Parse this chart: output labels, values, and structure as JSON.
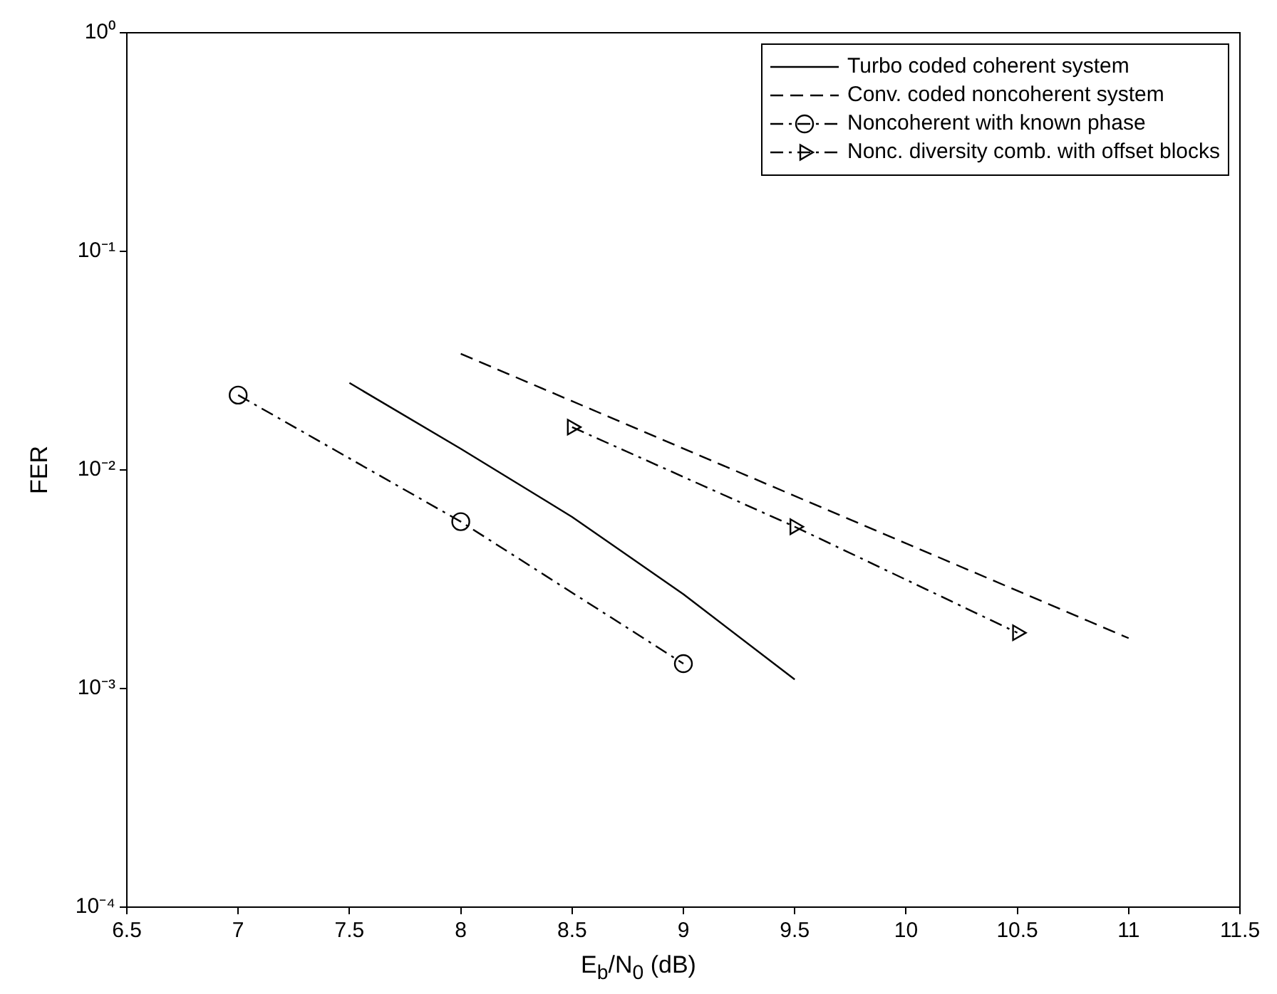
{
  "chart_data": {
    "type": "line",
    "xlabel": "E$_{b}$/N$_{0}$ (dB)",
    "ylabel": "FER",
    "log": "y",
    "grid": false,
    "legend": "top right",
    "xlim": [
      6.5,
      11.5
    ],
    "xticks": [
      6.5,
      7,
      7.5,
      8,
      8.5,
      9,
      9.5,
      10,
      10.5,
      11,
      11.5
    ],
    "ylim": [
      0.0001,
      1
    ],
    "yticks": [
      {
        "value": 1,
        "label": "10⁰"
      },
      {
        "value": 0.1,
        "label": "10⁻¹"
      },
      {
        "value": 0.01,
        "label": "10⁻²"
      },
      {
        "value": 0.001,
        "label": "10⁻³"
      },
      {
        "value": 0.0001,
        "label": "10⁻⁴"
      }
    ],
    "series": [
      {
        "name": "Turbo coded coherent system",
        "color": "#000000",
        "line_style": "solid",
        "marker": "none",
        "x": [
          7.5,
          8,
          8.5,
          9,
          9.5
        ],
        "values": [
          0.025,
          0.0125,
          0.0061,
          0.0027,
          0.0011
        ]
      },
      {
        "name": "Conv. coded noncoherent system",
        "color": "#000000",
        "line_style": "dashed",
        "marker": "none",
        "x": [
          8,
          11
        ],
        "values": [
          0.034,
          0.0017
        ]
      },
      {
        "name": "Noncoherent with known phase",
        "color": "#000000",
        "line_style": "dashdot",
        "marker": "circle",
        "x": [
          7,
          8,
          9
        ],
        "values": [
          0.022,
          0.0058,
          0.0013
        ]
      },
      {
        "name": "Nonc. diversity comb. with offset blocks",
        "color": "#000000",
        "line_style": "dashdot",
        "marker": "triangle",
        "x": [
          8.5,
          9.5,
          10.5
        ],
        "values": [
          0.0157,
          0.0055,
          0.0018
        ]
      }
    ]
  }
}
